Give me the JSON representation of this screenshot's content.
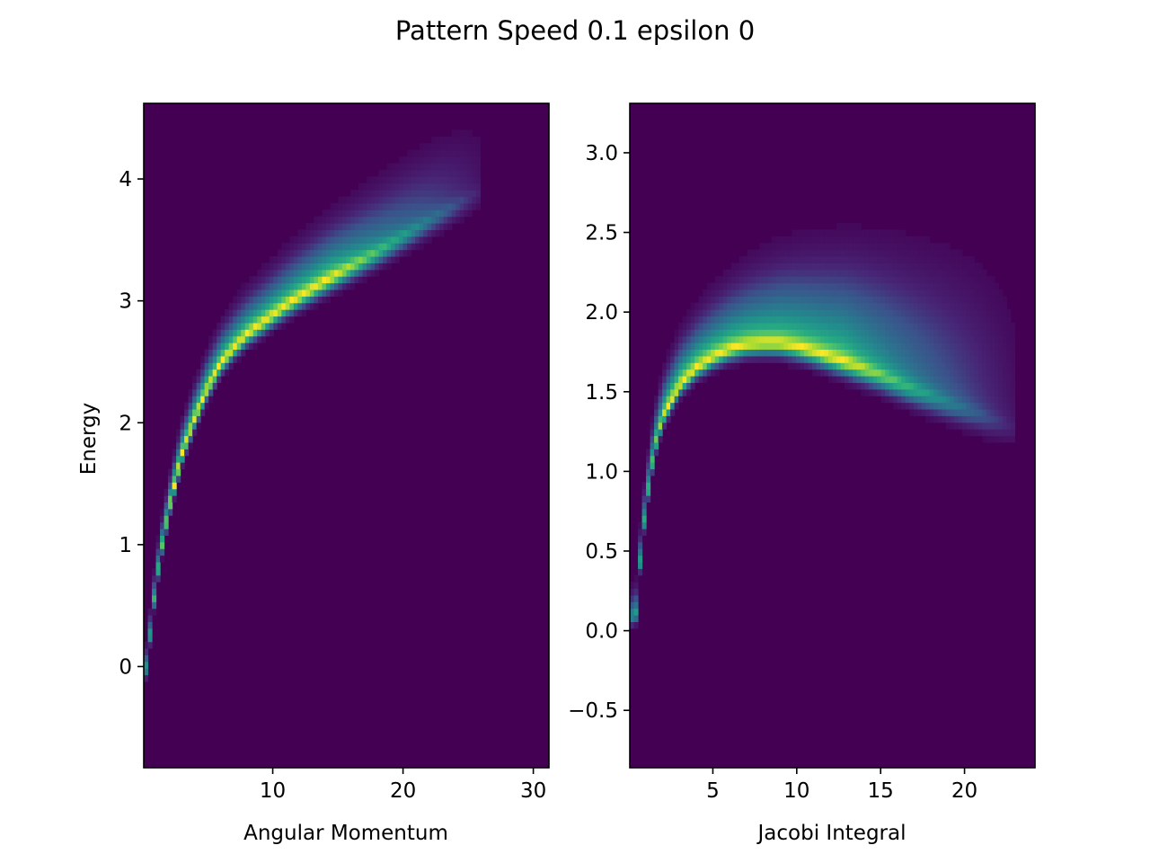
{
  "figure": {
    "title": "Pattern Speed 0.1 epsilon 0"
  },
  "chart_data": [
    {
      "type": "heatmap",
      "colormap": "viridis",
      "background_color": "#440154",
      "xlabel": "Angular Momentum",
      "ylabel": "Energy",
      "xlim": [
        0.1,
        31.2
      ],
      "ylim": [
        -0.83,
        4.62
      ],
      "xticks": [
        10,
        20,
        30
      ],
      "xtick_labels": [
        "10",
        "20",
        "30"
      ],
      "yticks": [
        0,
        1,
        2,
        3,
        4
      ],
      "ytick_labels": [
        "0",
        "1",
        "2",
        "3",
        "4"
      ],
      "ridge": [
        {
          "x": 0.3,
          "y": 0.0
        },
        {
          "x": 0.8,
          "y": 0.5
        },
        {
          "x": 1.3,
          "y": 0.9
        },
        {
          "x": 2.0,
          "y": 1.3
        },
        {
          "x": 3.0,
          "y": 1.75
        },
        {
          "x": 4.0,
          "y": 2.05
        },
        {
          "x": 5.0,
          "y": 2.3
        },
        {
          "x": 6.0,
          "y": 2.5
        },
        {
          "x": 7.0,
          "y": 2.63
        },
        {
          "x": 8.0,
          "y": 2.74
        },
        {
          "x": 9.0,
          "y": 2.82
        },
        {
          "x": 10.0,
          "y": 2.9
        },
        {
          "x": 11.0,
          "y": 2.98
        },
        {
          "x": 12.0,
          "y": 3.05
        },
        {
          "x": 14.0,
          "y": 3.18
        },
        {
          "x": 16.0,
          "y": 3.3
        },
        {
          "x": 18.0,
          "y": 3.42
        },
        {
          "x": 20.0,
          "y": 3.55
        },
        {
          "x": 22.0,
          "y": 3.68
        },
        {
          "x": 24.0,
          "y": 3.8
        },
        {
          "x": 26.0,
          "y": 3.92
        }
      ]
    },
    {
      "type": "heatmap",
      "colormap": "viridis",
      "background_color": "#440154",
      "xlabel": "Jacobi Integral",
      "ylabel": "",
      "xlim": [
        0.05,
        24.2
      ],
      "ylim": [
        -0.86,
        3.31
      ],
      "xticks": [
        5,
        10,
        15,
        20
      ],
      "xtick_labels": [
        "5",
        "10",
        "15",
        "20"
      ],
      "yticks": [
        -0.5,
        0.0,
        0.5,
        1.0,
        1.5,
        2.0,
        2.5,
        3.0
      ],
      "ytick_labels": [
        "−0.5",
        "0.0",
        "0.5",
        "1.0",
        "1.5",
        "2.0",
        "2.5",
        "3.0"
      ],
      "ridge": [
        {
          "x": 0.4,
          "y": 0.1
        },
        {
          "x": 0.7,
          "y": 0.5
        },
        {
          "x": 1.0,
          "y": 0.8
        },
        {
          "x": 1.5,
          "y": 1.15
        },
        {
          "x": 2.0,
          "y": 1.35
        },
        {
          "x": 3.0,
          "y": 1.55
        },
        {
          "x": 4.0,
          "y": 1.66
        },
        {
          "x": 5.0,
          "y": 1.73
        },
        {
          "x": 6.0,
          "y": 1.78
        },
        {
          "x": 7.0,
          "y": 1.81
        },
        {
          "x": 8.0,
          "y": 1.82
        },
        {
          "x": 9.0,
          "y": 1.82
        },
        {
          "x": 10.0,
          "y": 1.8
        },
        {
          "x": 11.0,
          "y": 1.77
        },
        {
          "x": 13.0,
          "y": 1.7
        },
        {
          "x": 15.0,
          "y": 1.62
        },
        {
          "x": 17.0,
          "y": 1.53
        },
        {
          "x": 19.0,
          "y": 1.45
        },
        {
          "x": 21.0,
          "y": 1.37
        },
        {
          "x": 23.0,
          "y": 1.29
        }
      ]
    }
  ]
}
